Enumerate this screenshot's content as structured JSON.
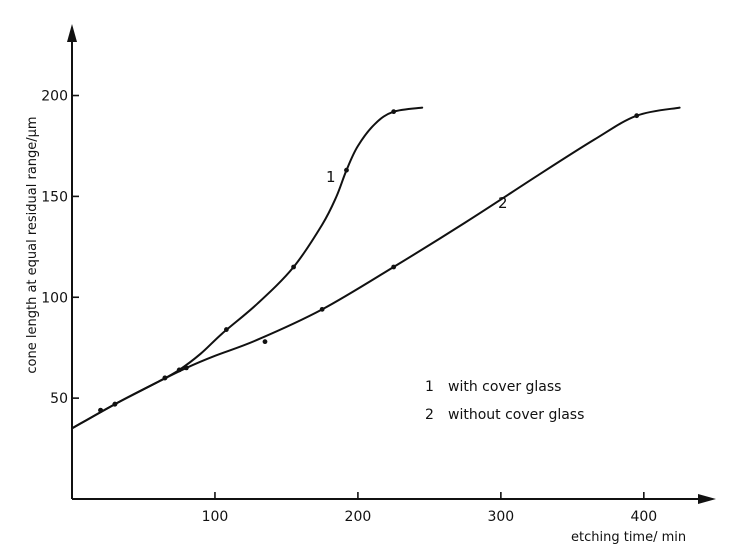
{
  "chart_data": {
    "type": "line",
    "title": "",
    "xlabel": "etching time/ min",
    "ylabel": "cone length at equal residual range/µm",
    "xlim": [
      0,
      440
    ],
    "ylim": [
      0,
      230
    ],
    "x_ticks": [
      100,
      200,
      300,
      400
    ],
    "x_tick_labels": [
      "100",
      "200",
      "300",
      "400"
    ],
    "y_ticks": [
      50,
      100,
      150,
      200
    ],
    "y_tick_labels": [
      "50",
      "100",
      "150",
      "200"
    ],
    "grid": false,
    "series": [
      {
        "name": "1",
        "legend": "with cover glass",
        "line": [
          [
            0,
            35
          ],
          [
            30,
            47
          ],
          [
            60,
            58
          ],
          [
            75,
            64
          ],
          [
            90,
            72
          ],
          [
            105,
            82
          ],
          [
            130,
            97
          ],
          [
            155,
            115
          ],
          [
            175,
            136
          ],
          [
            185,
            150
          ],
          [
            192,
            163
          ],
          [
            200,
            175
          ],
          [
            212,
            186
          ],
          [
            225,
            192
          ],
          [
            245,
            194
          ]
        ],
        "points": [
          [
            20,
            44
          ],
          [
            30,
            47
          ],
          [
            65,
            60
          ],
          [
            75,
            64
          ],
          [
            108,
            84
          ],
          [
            155,
            115
          ],
          [
            192,
            163
          ],
          [
            225,
            192
          ]
        ]
      },
      {
        "name": "2",
        "legend": "without cover glass",
        "line": [
          [
            0,
            35
          ],
          [
            30,
            47
          ],
          [
            60,
            58
          ],
          [
            80,
            65
          ],
          [
            100,
            71
          ],
          [
            130,
            79
          ],
          [
            175,
            94
          ],
          [
            225,
            115
          ],
          [
            275,
            137
          ],
          [
            325,
            160
          ],
          [
            365,
            178
          ],
          [
            395,
            190
          ],
          [
            425,
            194
          ]
        ],
        "points": [
          [
            20,
            44
          ],
          [
            30,
            47
          ],
          [
            65,
            60
          ],
          [
            80,
            65
          ],
          [
            135,
            78
          ],
          [
            175,
            94
          ],
          [
            225,
            115
          ],
          [
            395,
            190
          ]
        ]
      }
    ],
    "legend_entries": [
      {
        "id": "1",
        "text": "with cover glass"
      },
      {
        "id": "2",
        "text": "without cover glass"
      }
    ],
    "curve_labels": [
      {
        "text": "1",
        "series": "1"
      },
      {
        "text": "2",
        "series": "2"
      }
    ]
  }
}
